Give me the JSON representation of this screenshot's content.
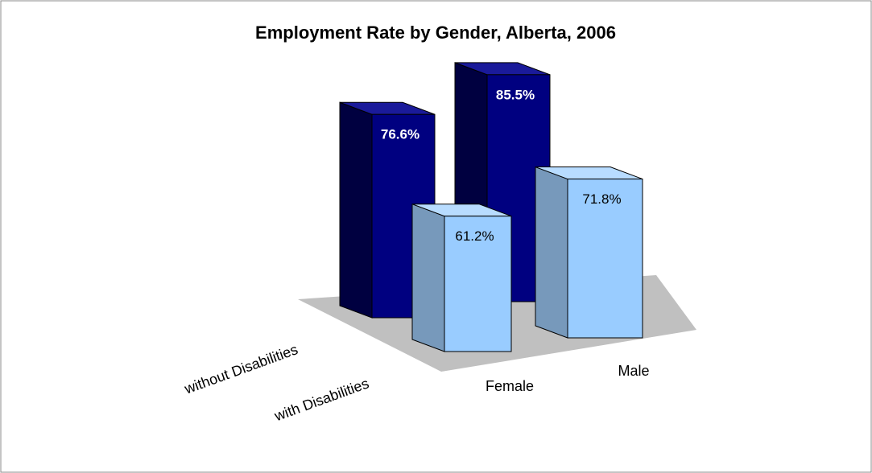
{
  "chart_data": {
    "type": "bar3d",
    "title": "Employment Rate by Gender, Alberta, 2006",
    "categories": [
      "Female",
      "Male"
    ],
    "series": [
      {
        "name": "without Disabilities",
        "color": "#000080",
        "values": [
          76.6,
          85.5
        ],
        "value_labels": [
          "76.6%",
          "85.5%"
        ]
      },
      {
        "name": "with Disabilities",
        "color": "#99ccff",
        "values": [
          61.2,
          71.8
        ],
        "value_labels": [
          "61.2%",
          "71.8%"
        ]
      }
    ]
  }
}
